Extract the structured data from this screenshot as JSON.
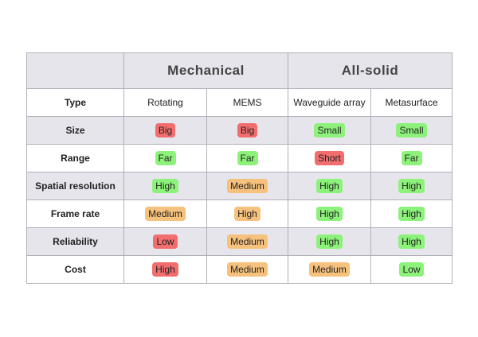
{
  "header": {
    "groups": [
      "Mechanical",
      "All-solid"
    ]
  },
  "table": {
    "column_label": "Type",
    "columns": [
      "Rotating",
      "MEMS",
      "Waveguide array",
      "Metasurface"
    ],
    "rows": [
      {
        "label": "Size",
        "cells": [
          {
            "text": "Big",
            "color": "#f26d6d"
          },
          {
            "text": "Big",
            "color": "#f26d6d"
          },
          {
            "text": "Small",
            "color": "#8df27a"
          },
          {
            "text": "Small",
            "color": "#8df27a"
          }
        ]
      },
      {
        "label": "Range",
        "cells": [
          {
            "text": "Far",
            "color": "#8df27a"
          },
          {
            "text": "Far",
            "color": "#8df27a"
          },
          {
            "text": "Short",
            "color": "#f26d6d"
          },
          {
            "text": "Far",
            "color": "#8df27a"
          }
        ]
      },
      {
        "label": "Spatial resolution",
        "cells": [
          {
            "text": "High",
            "color": "#8df27a"
          },
          {
            "text": "Medium",
            "color": "#f6c17c"
          },
          {
            "text": "High",
            "color": "#8df27a"
          },
          {
            "text": "High",
            "color": "#8df27a"
          }
        ]
      },
      {
        "label": "Frame rate",
        "cells": [
          {
            "text": "Medium",
            "color": "#f6c17c"
          },
          {
            "text": "High",
            "color": "#f6c17c"
          },
          {
            "text": "High",
            "color": "#8df27a"
          },
          {
            "text": "High",
            "color": "#8df27a"
          }
        ]
      },
      {
        "label": "Reliability",
        "cells": [
          {
            "text": "Low",
            "color": "#f26d6d"
          },
          {
            "text": "Medium",
            "color": "#f6c17c"
          },
          {
            "text": "High",
            "color": "#8df27a"
          },
          {
            "text": "High",
            "color": "#8df27a"
          }
        ]
      },
      {
        "label": "Cost",
        "cells": [
          {
            "text": "High",
            "color": "#f26d6d"
          },
          {
            "text": "Medium",
            "color": "#f6c17c"
          },
          {
            "text": "Medium",
            "color": "#f6c17c"
          },
          {
            "text": "Low",
            "color": "#8df27a"
          }
        ]
      }
    ]
  }
}
